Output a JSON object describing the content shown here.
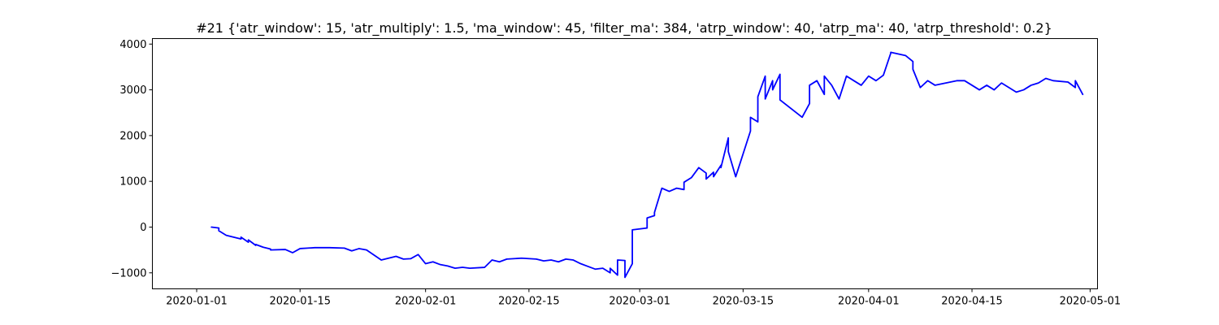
{
  "chart_data": {
    "type": "line",
    "title": "#21 {'atr_window': 15, 'atr_multiply': 1.5, 'ma_window': 45, 'filter_ma': 384, 'atrp_window': 40, 'atrp_ma': 40, 'atrp_threshold': 0.2}",
    "xlabel": "",
    "ylabel": "",
    "xlim": [
      "2019-12-26",
      "2020-05-02"
    ],
    "ylim": [
      -1350,
      4120
    ],
    "x_ticks": [
      "2020-01-01",
      "2020-01-15",
      "2020-02-01",
      "2020-02-15",
      "2020-03-01",
      "2020-03-15",
      "2020-04-01",
      "2020-04-15",
      "2020-05-01"
    ],
    "y_ticks": [
      -1000,
      0,
      1000,
      2000,
      3000,
      4000
    ],
    "grid": false,
    "colors": {
      "line": "#0000ff",
      "axes": "#000000",
      "background": "#ffffff"
    },
    "series": [
      {
        "x": [
          "2020-01-03",
          "2020-01-03",
          "2020-01-04",
          "2020-01-04",
          "2020-01-05",
          "2020-01-07",
          "2020-01-07",
          "2020-01-08",
          "2020-01-08",
          "2020-01-09",
          "2020-01-09",
          "2020-01-10",
          "2020-01-11",
          "2020-01-11",
          "2020-01-13",
          "2020-01-14",
          "2020-01-15",
          "2020-01-16",
          "2020-01-17",
          "2020-01-19",
          "2020-01-21",
          "2020-01-22",
          "2020-01-23",
          "2020-01-24",
          "2020-01-26",
          "2020-01-28",
          "2020-01-29",
          "2020-01-30",
          "2020-01-31",
          "2020-02-01",
          "2020-02-02",
          "2020-02-03",
          "2020-02-04",
          "2020-02-05",
          "2020-02-06",
          "2020-02-07",
          "2020-02-09",
          "2020-02-10",
          "2020-02-11",
          "2020-02-12",
          "2020-02-14",
          "2020-02-16",
          "2020-02-17",
          "2020-02-18",
          "2020-02-19",
          "2020-02-20",
          "2020-02-21",
          "2020-02-22",
          "2020-02-23",
          "2020-02-24",
          "2020-02-25",
          "2020-02-26",
          "2020-02-26",
          "2020-02-27",
          "2020-02-27",
          "2020-02-28",
          "2020-02-28",
          "2020-02-29",
          "2020-02-29",
          "2020-03-02",
          "2020-03-02",
          "2020-03-03",
          "2020-03-03",
          "2020-03-04",
          "2020-03-05",
          "2020-03-06",
          "2020-03-07",
          "2020-03-07",
          "2020-03-08",
          "2020-03-09",
          "2020-03-10",
          "2020-03-10",
          "2020-03-11",
          "2020-03-11",
          "2020-03-12",
          "2020-03-12",
          "2020-03-13",
          "2020-03-13",
          "2020-03-14",
          "2020-03-16",
          "2020-03-16",
          "2020-03-17",
          "2020-03-17",
          "2020-03-18",
          "2020-03-18",
          "2020-03-19",
          "2020-03-19",
          "2020-03-20",
          "2020-03-20",
          "2020-03-23",
          "2020-03-24",
          "2020-03-24",
          "2020-03-25",
          "2020-03-26",
          "2020-03-26",
          "2020-03-27",
          "2020-03-28",
          "2020-03-29",
          "2020-03-30",
          "2020-03-31",
          "2020-04-01",
          "2020-04-02",
          "2020-04-03",
          "2020-04-04",
          "2020-04-04",
          "2020-04-06",
          "2020-04-07",
          "2020-04-07",
          "2020-04-08",
          "2020-04-09",
          "2020-04-10",
          "2020-04-13",
          "2020-04-14",
          "2020-04-15",
          "2020-04-16",
          "2020-04-17",
          "2020-04-18",
          "2020-04-19",
          "2020-04-21",
          "2020-04-22",
          "2020-04-23",
          "2020-04-24",
          "2020-04-25",
          "2020-04-26",
          "2020-04-28",
          "2020-04-29",
          "2020-04-29",
          "2020-04-30"
        ],
        "values": [
          0,
          0,
          -20,
          -80,
          -180,
          -260,
          -220,
          -330,
          -280,
          -400,
          -380,
          -440,
          -480,
          -500,
          -490,
          -560,
          -470,
          -460,
          -450,
          -450,
          -460,
          -520,
          -470,
          -500,
          -720,
          -640,
          -700,
          -690,
          -600,
          -800,
          -760,
          -820,
          -850,
          -900,
          -880,
          -900,
          -880,
          -720,
          -760,
          -700,
          -680,
          -700,
          -740,
          -720,
          -760,
          -700,
          -720,
          -800,
          -860,
          -920,
          -900,
          -1000,
          -900,
          -1050,
          -720,
          -730,
          -1100,
          -800,
          -60,
          -20,
          200,
          250,
          320,
          850,
          780,
          850,
          820,
          980,
          1080,
          1300,
          1180,
          1050,
          1200,
          1100,
          1350,
          1300,
          1950,
          1650,
          1100,
          2100,
          2400,
          2300,
          2850,
          3300,
          2800,
          3200,
          3000,
          3340,
          2780,
          2400,
          2700,
          3100,
          3200,
          2900,
          3300,
          3100,
          2800,
          3300,
          3200,
          3100,
          3300,
          3200,
          3320,
          3800,
          3820,
          3750,
          3620,
          3450,
          3050,
          3200,
          3100,
          3200,
          3200,
          3100,
          3000,
          3100,
          3000,
          3150,
          2950,
          3000,
          3100,
          3150,
          3250,
          3200,
          3170,
          3050,
          3200,
          2900
        ]
      }
    ]
  }
}
